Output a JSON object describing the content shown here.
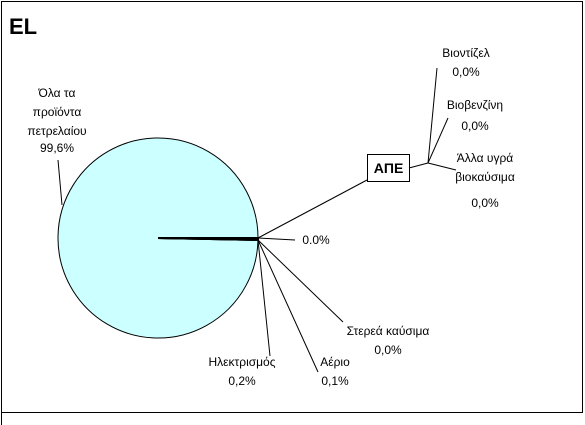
{
  "chart_data": {
    "type": "pie",
    "title": "EL",
    "categories": [
      "Όλα τα προϊόντα πετρελαίου",
      "Ηλεκτρισμός",
      "Αέριο",
      "Στερεά καύσιμα",
      "ΑΠΕ"
    ],
    "values": [
      99.6,
      0.2,
      0.1,
      0.0,
      0.0
    ],
    "value_labels": [
      "99,6%",
      "0,2%",
      "0,1%",
      "0,0%",
      "0.0%"
    ],
    "colors": [
      "#ccffff",
      "#9999ff",
      "#993366",
      "#ffffcc",
      "#660066"
    ],
    "breakdown": {
      "categories": [
        "Βιοντίζελ",
        "Βιοβενζίνη",
        "Άλλα υγρά βιοκαύσιμα"
      ],
      "values": [
        0.0,
        0.0,
        0.0
      ],
      "value_labels": [
        "0,0%",
        "0,0%",
        "0,0%"
      ]
    }
  }
}
